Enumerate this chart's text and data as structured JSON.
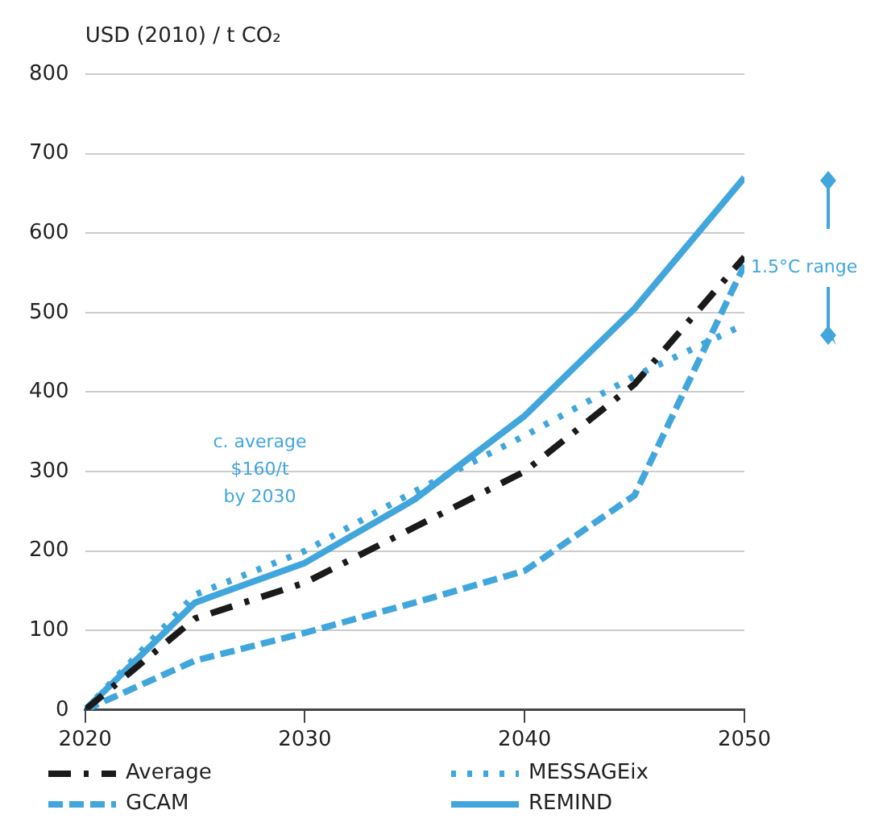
{
  "chart_data": {
    "type": "line",
    "ylabel": "USD (2010) / t CO₂",
    "x": [
      2020,
      2025,
      2030,
      2035,
      2040,
      2045,
      2050
    ],
    "series": [
      {
        "name": "Average",
        "color": "#1a1a1a",
        "line_style": "dashdot",
        "values": [
          0,
          115,
          160,
          230,
          300,
          410,
          570
        ]
      },
      {
        "name": "GCAM",
        "color": "#41a6dc",
        "line_style": "dashed",
        "values": [
          0,
          62,
          97,
          135,
          175,
          270,
          560
        ]
      },
      {
        "name": "MESSAGEix",
        "color": "#41a6dc",
        "line_style": "dotted",
        "values": [
          0,
          145,
          200,
          275,
          345,
          420,
          485
        ]
      },
      {
        "name": "REMIND",
        "color": "#41a6dc",
        "line_style": "solid",
        "values": [
          0,
          135,
          185,
          265,
          370,
          505,
          670
        ]
      }
    ],
    "xlim": [
      2020,
      2050
    ],
    "xticks": [
      2020,
      2030,
      2040,
      2050
    ],
    "ylim": [
      0,
      800
    ],
    "yticks": [
      0,
      100,
      200,
      300,
      400,
      500,
      600,
      700,
      800
    ],
    "grid": "y",
    "legend": "bottom",
    "marker": "none",
    "annotations": [
      "c. average\n$160/t\nby 2030",
      "1.5°C range"
    ]
  }
}
